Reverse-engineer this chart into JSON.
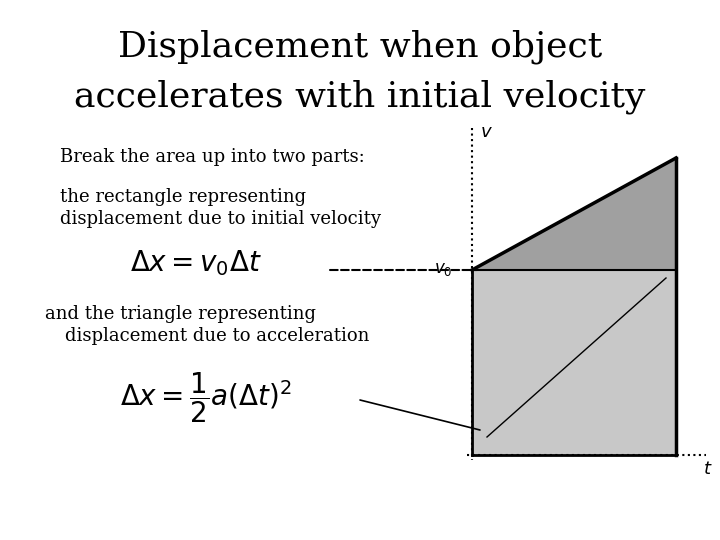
{
  "title_line1": "Displacement when object",
  "title_line2": "accelerates with initial velocity",
  "subtitle": "Break the area up into two parts:",
  "text1_line1": "the rectangle representing",
  "text1_line2": "displacement due to initial velocity",
  "formula1": "$\\Delta x = v_0 \\Delta t$",
  "text2_line1": "and the triangle representing",
  "text2_line2": "displacement due to acceleration",
  "formula2": "$\\Delta x = \\dfrac{1}{2}a(\\Delta t)^2$",
  "bg_color": "#ffffff",
  "rect_color": "#c8c8c8",
  "tri_color": "#a0a0a0",
  "line_color": "#000000"
}
